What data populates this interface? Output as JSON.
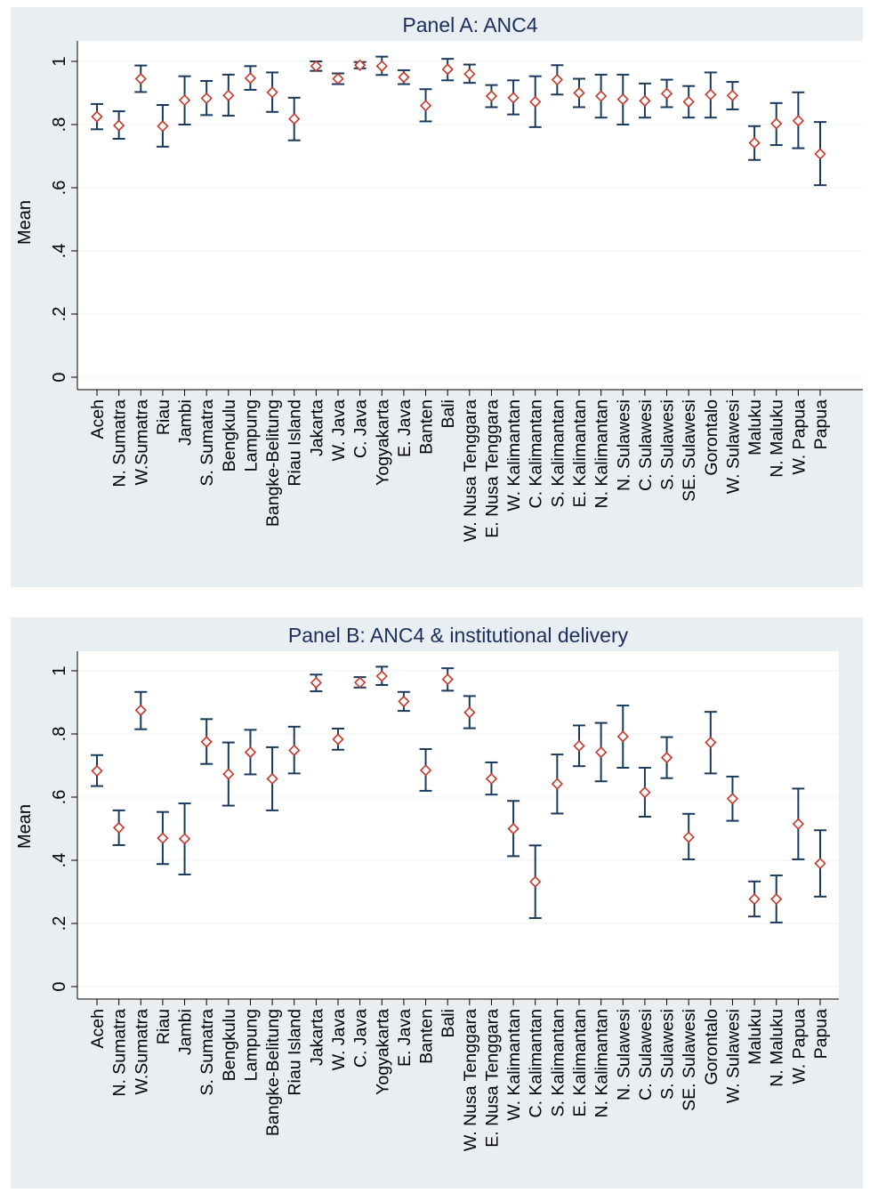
{
  "chart_data": [
    {
      "type": "scatter",
      "subtype": "mean-with-confidence-interval",
      "title": "Panel A: ANC4",
      "ylabel": "Mean",
      "xlabel": "",
      "ylim": [
        0,
        1
      ],
      "yticks": [
        "0",
        ".2",
        ".4",
        ".6",
        ".8",
        "1"
      ],
      "ytick_values": [
        0,
        0.2,
        0.4,
        0.6,
        0.8,
        1
      ],
      "grid": true,
      "categories": [
        "Aceh",
        "N. Sumatra",
        "W.Sumatra",
        "Riau",
        "Jambi",
        "S. Sumatra",
        "Bengkulu",
        "Lampung",
        "Bangke-Belitung",
        "Riau Island",
        "Jakarta",
        "W. Java",
        "C. Java",
        "Yogyakarta",
        "E. Java",
        "Banten",
        "Bali",
        "W. Nusa Tenggara",
        "E. Nusa Tenggara",
        "W. Kalimantan",
        "C. Kalimantan",
        "S. Kalimantan",
        "E. Kalimantan",
        "N. Kalimantan",
        "N. Sulawesi",
        "C. Sulawesi",
        "S. Sulawesi",
        "SE. Sulawesi",
        "Gorontalo",
        "W. Sulawesi",
        "Maluku",
        "N. Maluku",
        "W. Papua",
        "Papua"
      ],
      "mean": [
        0.825,
        0.797,
        0.945,
        0.795,
        0.877,
        0.883,
        0.892,
        0.947,
        0.902,
        0.818,
        0.985,
        0.945,
        0.988,
        0.985,
        0.95,
        0.86,
        0.975,
        0.96,
        0.89,
        0.885,
        0.872,
        0.942,
        0.9,
        0.89,
        0.88,
        0.875,
        0.898,
        0.872,
        0.895,
        0.892,
        0.742,
        0.803,
        0.812,
        0.707
      ],
      "lower": [
        0.785,
        0.755,
        0.903,
        0.73,
        0.8,
        0.83,
        0.828,
        0.91,
        0.84,
        0.75,
        0.97,
        0.928,
        0.978,
        0.957,
        0.928,
        0.81,
        0.94,
        0.932,
        0.855,
        0.832,
        0.792,
        0.895,
        0.855,
        0.822,
        0.8,
        0.822,
        0.855,
        0.822,
        0.822,
        0.848,
        0.688,
        0.735,
        0.725,
        0.608
      ],
      "upper": [
        0.865,
        0.842,
        0.987,
        0.862,
        0.953,
        0.938,
        0.958,
        0.985,
        0.965,
        0.885,
        1.0,
        0.962,
        0.998,
        1.015,
        0.972,
        0.912,
        1.008,
        0.99,
        0.925,
        0.94,
        0.953,
        0.988,
        0.945,
        0.958,
        0.958,
        0.93,
        0.942,
        0.922,
        0.965,
        0.935,
        0.795,
        0.868,
        0.902,
        0.808
      ],
      "colors": {
        "marker": "#c0392b",
        "ci": "#1a3a5c",
        "background": "#e8eef2",
        "plot_bg": "#ffffff",
        "title": "#1c2e5c"
      }
    },
    {
      "type": "scatter",
      "subtype": "mean-with-confidence-interval",
      "title": "Panel B: ANC4 & institutional delivery",
      "ylabel": "Mean",
      "xlabel": "",
      "ylim": [
        0,
        1
      ],
      "yticks": [
        "0",
        ".2",
        ".4",
        ".6",
        ".8",
        "1"
      ],
      "ytick_values": [
        0,
        0.2,
        0.4,
        0.6,
        0.8,
        1
      ],
      "grid": true,
      "categories": [
        "Aceh",
        "N. Sumatra",
        "W.Sumatra",
        "Riau",
        "Jambi",
        "S. Sumatra",
        "Bengkulu",
        "Lampung",
        "Bangke-Belitung",
        "Riau Island",
        "Jakarta",
        "W. Java",
        "C. Java",
        "Yogyakarta",
        "E. Java",
        "Banten",
        "Bali",
        "W. Nusa Tenggara",
        "E. Nusa Tenggara",
        "W. Kalimantan",
        "C. Kalimantan",
        "S. Kalimantan",
        "E. Kalimantan",
        "N. Kalimantan",
        "N. Sulawesi",
        "C. Sulawesi",
        "S. Sulawesi",
        "SE. Sulawesi",
        "Gorontalo",
        "W. Sulawesi",
        "Maluku",
        "N. Maluku",
        "W. Papua",
        "Papua"
      ],
      "mean": [
        0.683,
        0.503,
        0.875,
        0.47,
        0.468,
        0.775,
        0.673,
        0.742,
        0.658,
        0.748,
        0.962,
        0.783,
        0.963,
        0.983,
        0.903,
        0.685,
        0.973,
        0.868,
        0.658,
        0.5,
        0.332,
        0.642,
        0.762,
        0.742,
        0.792,
        0.615,
        0.725,
        0.473,
        0.773,
        0.595,
        0.277,
        0.277,
        0.515,
        0.39
      ],
      "lower": [
        0.635,
        0.448,
        0.815,
        0.388,
        0.355,
        0.705,
        0.573,
        0.672,
        0.558,
        0.675,
        0.935,
        0.75,
        0.947,
        0.955,
        0.873,
        0.62,
        0.937,
        0.818,
        0.608,
        0.413,
        0.217,
        0.548,
        0.698,
        0.65,
        0.693,
        0.538,
        0.66,
        0.403,
        0.675,
        0.525,
        0.222,
        0.203,
        0.403,
        0.285
      ],
      "upper": [
        0.733,
        0.558,
        0.933,
        0.553,
        0.58,
        0.847,
        0.773,
        0.813,
        0.758,
        0.823,
        0.988,
        0.817,
        0.98,
        1.013,
        0.933,
        0.752,
        1.008,
        0.92,
        0.71,
        0.588,
        0.447,
        0.735,
        0.827,
        0.835,
        0.89,
        0.693,
        0.79,
        0.547,
        0.87,
        0.665,
        0.333,
        0.352,
        0.627,
        0.495
      ],
      "colors": {
        "marker": "#c0392b",
        "ci": "#1a3a5c",
        "background": "#e8eef2",
        "plot_bg": "#ffffff",
        "title": "#1c2e5c"
      }
    }
  ]
}
